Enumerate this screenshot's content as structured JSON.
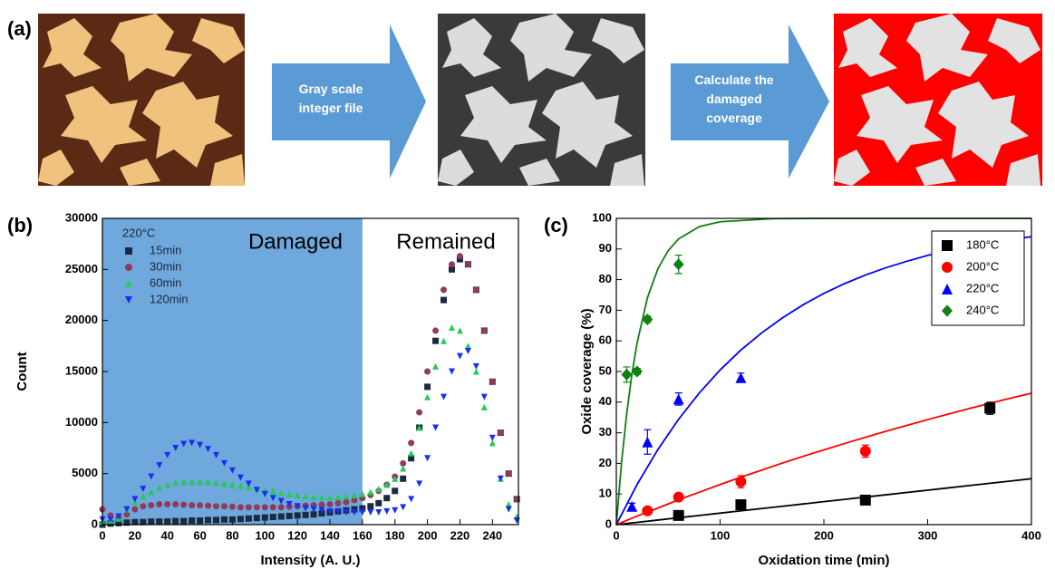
{
  "panel_a": {
    "label": "(a)",
    "steps": [
      "Gray scale integer file",
      "Calculate the damaged coverage"
    ]
  },
  "chart_data": [
    {
      "type": "scatter",
      "label": "(b)",
      "xlabel": "Intensity (A. U.)",
      "ylabel": "Count",
      "xlim": [
        0,
        256
      ],
      "xticks": [
        0,
        20,
        40,
        60,
        80,
        100,
        120,
        140,
        160,
        180,
        200,
        220,
        240
      ],
      "ylim": [
        0,
        30000
      ],
      "yticks": [
        0,
        5000,
        10000,
        15000,
        20000,
        25000,
        30000
      ],
      "span": {
        "xmin": 0,
        "xmax": 160,
        "color": "#6fa8dc"
      },
      "annotations": [
        "Damaged",
        "Remained"
      ],
      "legend": "upper left",
      "legend_title": "220°C",
      "x": [
        0,
        5,
        10,
        15,
        20,
        25,
        30,
        35,
        40,
        45,
        50,
        55,
        60,
        65,
        70,
        75,
        80,
        85,
        90,
        95,
        100,
        105,
        110,
        115,
        120,
        125,
        130,
        135,
        140,
        145,
        150,
        155,
        160,
        165,
        170,
        175,
        180,
        185,
        190,
        195,
        200,
        205,
        210,
        215,
        220,
        225,
        230,
        235,
        240,
        245,
        250,
        255
      ],
      "series": [
        {
          "name": "15min",
          "color": "#1b2a41",
          "marker": "square",
          "values": [
            0,
            100,
            150,
            200,
            250,
            250,
            300,
            300,
            300,
            350,
            350,
            400,
            400,
            450,
            450,
            500,
            500,
            550,
            600,
            650,
            700,
            750,
            800,
            850,
            900,
            950,
            1000,
            1100,
            1200,
            1300,
            1400,
            1500,
            1600,
            1800,
            2100,
            2600,
            3300,
            4500,
            6500,
            9500,
            13500,
            18000,
            22000,
            25000,
            26000,
            25500,
            23000,
            19000,
            14000,
            9000,
            5000,
            2500
          ]
        },
        {
          "name": "30min",
          "color": "#8e3b5e",
          "marker": "circle",
          "values": [
            1500,
            900,
            700,
            1000,
            1500,
            1800,
            1900,
            2000,
            2000,
            2000,
            1950,
            1900,
            1900,
            1850,
            1800,
            1800,
            1750,
            1700,
            1700,
            1700,
            1700,
            1700,
            1700,
            1750,
            1800,
            1850,
            1900,
            1950,
            2000,
            2100,
            2200,
            2400,
            2600,
            2900,
            3300,
            3900,
            4700,
            6000,
            8000,
            11000,
            15000,
            19000,
            23000,
            25500,
            26300,
            25500,
            23000,
            19000,
            14000,
            9000,
            5000,
            2500
          ]
        },
        {
          "name": "60min",
          "color": "#22cc55",
          "marker": "triangle",
          "values": [
            300,
            400,
            600,
            1500,
            2200,
            2800,
            3200,
            3600,
            3900,
            4100,
            4200,
            4200,
            4200,
            4200,
            4100,
            4000,
            3900,
            3800,
            3700,
            3500,
            3400,
            3300,
            3100,
            3000,
            2900,
            2800,
            2700,
            2700,
            2700,
            2700,
            2800,
            2900,
            3000,
            3200,
            3500,
            3900,
            4500,
            5500,
            7000,
            9500,
            12500,
            15500,
            18000,
            19300,
            19000,
            17500,
            15000,
            11500,
            8000,
            4500,
            2000,
            800
          ]
        },
        {
          "name": "120min",
          "color": "#1a2ef0",
          "marker": "triangle-down",
          "values": [
            500,
            500,
            800,
            1500,
            2500,
            3500,
            4700,
            5800,
            6800,
            7500,
            7900,
            8000,
            7800,
            7400,
            6800,
            6000,
            5300,
            4600,
            4000,
            3400,
            3000,
            2600,
            2300,
            2000,
            1800,
            1600,
            1500,
            1400,
            1300,
            1300,
            1200,
            1200,
            1200,
            1200,
            1200,
            1300,
            1400,
            1700,
            2500,
            4000,
            6500,
            9500,
            12500,
            15000,
            16500,
            17000,
            15500,
            12500,
            8500,
            4500,
            1500,
            400
          ]
        }
      ]
    },
    {
      "type": "scatter",
      "label": "(c)",
      "xlabel": "Oxidation time (min)",
      "ylabel": "Oxide coverage (%)",
      "xlim": [
        0,
        400
      ],
      "xticks": [
        0,
        100,
        200,
        300,
        400
      ],
      "ylim": [
        0,
        100
      ],
      "yticks": [
        0,
        10,
        20,
        30,
        40,
        50,
        60,
        70,
        80,
        90,
        100
      ],
      "legend": "upper right",
      "series": [
        {
          "name": "180°C",
          "color": "#000000",
          "marker": "square",
          "x": [
            60,
            120,
            240,
            360
          ],
          "values": [
            3,
            6.5,
            8,
            38
          ],
          "errors": [
            0.5,
            1,
            1.5,
            2
          ],
          "fit_x": [
            0,
            20,
            40,
            60,
            80,
            100,
            120,
            140,
            160,
            180,
            200,
            220,
            240,
            260,
            280,
            300,
            320,
            340,
            360,
            380,
            400
          ],
          "fit_y": [
            0,
            0.75,
            1.5,
            2.25,
            3,
            3.75,
            4.5,
            5.25,
            6,
            6.75,
            7.5,
            8.25,
            9,
            9.75,
            10.5,
            11.25,
            12,
            12.75,
            13.5,
            14.25,
            15
          ]
        },
        {
          "name": "200°C",
          "color": "#ff0000",
          "marker": "circle",
          "x": [
            30,
            60,
            120,
            240
          ],
          "values": [
            4.5,
            9,
            14,
            24
          ],
          "errors": [
            1,
            1,
            2,
            2
          ],
          "fit_x": [
            0,
            20,
            40,
            60,
            80,
            100,
            120,
            140,
            160,
            180,
            200,
            220,
            240,
            260,
            280,
            300,
            320,
            340,
            360,
            380,
            400
          ],
          "fit_y": [
            0,
            2.8,
            5.4,
            8.1,
            10.6,
            13.1,
            15.5,
            17.8,
            20.1,
            22.3,
            24.4,
            26.5,
            28.5,
            30.5,
            32.4,
            34.3,
            36.1,
            37.9,
            39.6,
            41.3,
            42.9
          ]
        },
        {
          "name": "220°C",
          "color": "#0000ff",
          "marker": "triangle",
          "x": [
            15,
            30,
            60,
            120
          ],
          "values": [
            6,
            27,
            41,
            48
          ],
          "errors": [
            1,
            4,
            2,
            1.5
          ],
          "fit_x": [
            0,
            20,
            40,
            60,
            80,
            100,
            120,
            140,
            160,
            180,
            200,
            220,
            240,
            260,
            280,
            300,
            320,
            340,
            360,
            380,
            400
          ],
          "fit_y": [
            0,
            13.1,
            24.5,
            34.4,
            43,
            50.5,
            57,
            62.6,
            67.5,
            71.8,
            75.5,
            78.7,
            81.5,
            83.9,
            86,
            87.9,
            89.5,
            90.8,
            92,
            93.1,
            94
          ]
        },
        {
          "name": "240°C",
          "color": "#108010",
          "marker": "diamond",
          "x": [
            10,
            20,
            30,
            60
          ],
          "values": [
            49,
            50,
            67,
            85
          ],
          "errors": [
            2.5,
            1,
            1,
            3
          ],
          "fit_x": [
            0,
            5,
            10,
            15,
            20,
            30,
            40,
            50,
            60,
            80,
            100,
            150,
            200,
            300,
            400
          ],
          "fit_y": [
            0,
            20.2,
            36.2,
            49.1,
            59.3,
            74.1,
            83.5,
            89.5,
            93.3,
            97.3,
            98.9,
            99.9,
            100,
            100,
            100
          ]
        }
      ]
    }
  ]
}
